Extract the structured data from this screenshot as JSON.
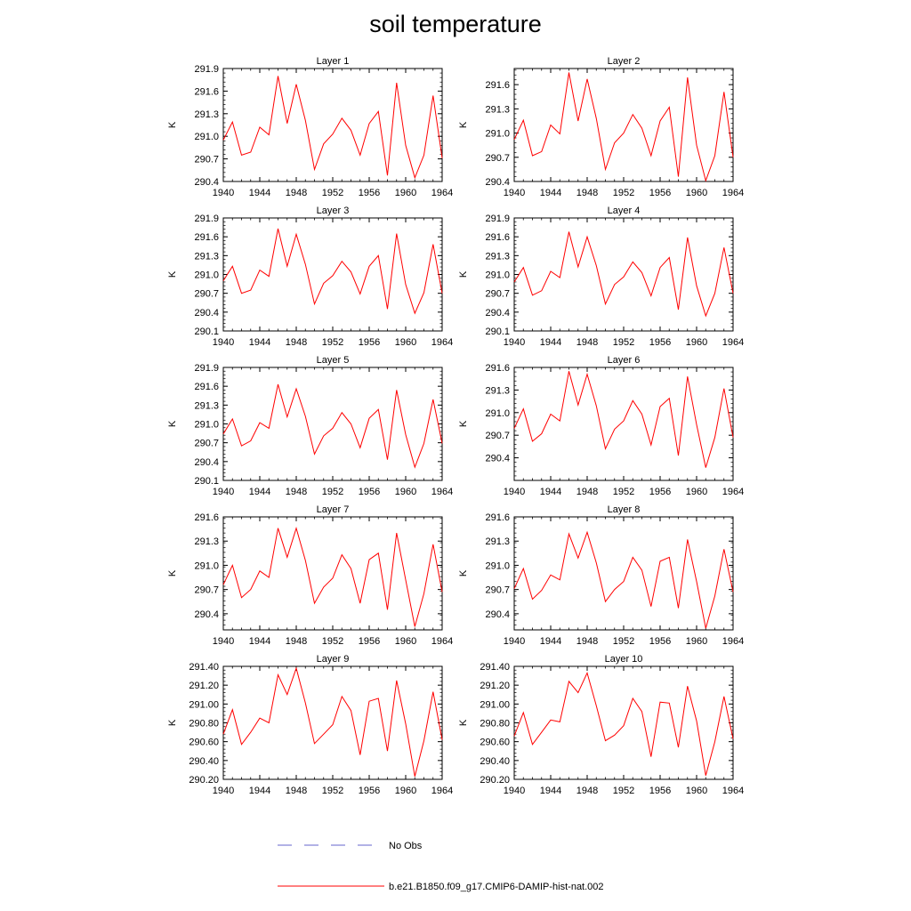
{
  "title": "soil temperature",
  "legend": [
    {
      "label": "No Obs",
      "color": "#6666cc",
      "dash": true
    },
    {
      "label": "b.e21.B1850.f09_g17.CMIP6-DAMIP-hist-nat.002",
      "color": "#ff0000",
      "dash": false
    }
  ],
  "chart_data": [
    {
      "type": "line",
      "title": "Layer 1",
      "ylabel": "K",
      "xlim": [
        1940,
        1964
      ],
      "ylim": [
        290.4,
        291.9
      ],
      "yticks": [
        290.4,
        290.7,
        291.0,
        291.3,
        291.6,
        291.9
      ],
      "ydec": 1,
      "xticks": [
        1940,
        1944,
        1948,
        1952,
        1956,
        1960,
        1964
      ],
      "x": [
        1940,
        1941,
        1942,
        1943,
        1944,
        1945,
        1946,
        1947,
        1948,
        1949,
        1950,
        1951,
        1952,
        1953,
        1954,
        1955,
        1956,
        1957,
        1958,
        1959,
        1960,
        1961,
        1962,
        1963,
        1964
      ],
      "series": [
        {
          "name": "b.e21.B1850.f09_g17.CMIP6-DAMIP-hist-nat.002",
          "values": [
            290.95,
            291.19,
            290.75,
            290.79,
            291.12,
            291.02,
            291.8,
            291.17,
            291.69,
            291.21,
            290.56,
            290.9,
            291.03,
            291.24,
            291.08,
            290.75,
            291.17,
            291.33,
            290.48,
            291.71,
            290.88,
            290.45,
            290.75,
            291.54,
            290.71
          ]
        }
      ]
    },
    {
      "type": "line",
      "title": "Layer 2",
      "ylabel": "K",
      "xlim": [
        1940,
        1964
      ],
      "ylim": [
        290.4,
        291.8
      ],
      "yticks": [
        290.4,
        290.7,
        291.0,
        291.3,
        291.6
      ],
      "ydec": 1,
      "xticks": [
        1940,
        1944,
        1948,
        1952,
        1956,
        1960,
        1964
      ],
      "x": [
        1940,
        1941,
        1942,
        1943,
        1944,
        1945,
        1946,
        1947,
        1948,
        1949,
        1950,
        1951,
        1952,
        1953,
        1954,
        1955,
        1956,
        1957,
        1958,
        1959,
        1960,
        1961,
        1962,
        1963,
        1964
      ],
      "series": [
        {
          "name": "b.e21.B1850.f09_g17.CMIP6-DAMIP-hist-nat.002",
          "values": [
            290.92,
            291.16,
            290.72,
            290.77,
            291.1,
            290.99,
            291.75,
            291.15,
            291.67,
            291.18,
            290.55,
            290.88,
            291.0,
            291.23,
            291.06,
            290.72,
            291.15,
            291.32,
            290.46,
            291.69,
            290.85,
            290.41,
            290.72,
            291.51,
            290.7
          ]
        }
      ]
    },
    {
      "type": "line",
      "title": "Layer 3",
      "ylabel": "K",
      "xlim": [
        1940,
        1964
      ],
      "ylim": [
        290.1,
        291.9
      ],
      "yticks": [
        290.1,
        290.4,
        290.7,
        291.0,
        291.3,
        291.6,
        291.9
      ],
      "ydec": 1,
      "xticks": [
        1940,
        1944,
        1948,
        1952,
        1956,
        1960,
        1964
      ],
      "x": [
        1940,
        1941,
        1942,
        1943,
        1944,
        1945,
        1946,
        1947,
        1948,
        1949,
        1950,
        1951,
        1952,
        1953,
        1954,
        1955,
        1956,
        1957,
        1958,
        1959,
        1960,
        1961,
        1962,
        1963,
        1964
      ],
      "series": [
        {
          "name": "b.e21.B1850.f09_g17.CMIP6-DAMIP-hist-nat.002",
          "values": [
            290.9,
            291.13,
            290.7,
            290.75,
            291.07,
            290.97,
            291.73,
            291.13,
            291.64,
            291.16,
            290.53,
            290.86,
            290.98,
            291.21,
            291.04,
            290.69,
            291.13,
            291.3,
            290.45,
            291.65,
            290.84,
            290.38,
            290.71,
            291.48,
            290.7
          ]
        }
      ]
    },
    {
      "type": "line",
      "title": "Layer 4",
      "ylabel": "K",
      "xlim": [
        1940,
        1964
      ],
      "ylim": [
        290.1,
        291.9
      ],
      "yticks": [
        290.1,
        290.4,
        290.7,
        291.0,
        291.3,
        291.6,
        291.9
      ],
      "ydec": 1,
      "xticks": [
        1940,
        1944,
        1948,
        1952,
        1956,
        1960,
        1964
      ],
      "x": [
        1940,
        1941,
        1942,
        1943,
        1944,
        1945,
        1946,
        1947,
        1948,
        1949,
        1950,
        1951,
        1952,
        1953,
        1954,
        1955,
        1956,
        1957,
        1958,
        1959,
        1960,
        1961,
        1962,
        1963,
        1964
      ],
      "series": [
        {
          "name": "b.e21.B1850.f09_g17.CMIP6-DAMIP-hist-nat.002",
          "values": [
            290.88,
            291.11,
            290.67,
            290.74,
            291.05,
            290.95,
            291.68,
            291.12,
            291.6,
            291.14,
            290.53,
            290.84,
            290.96,
            291.2,
            291.03,
            290.66,
            291.11,
            291.27,
            290.44,
            291.59,
            290.82,
            290.34,
            290.7,
            291.43,
            290.7
          ]
        }
      ]
    },
    {
      "type": "line",
      "title": "Layer 5",
      "ylabel": "K",
      "xlim": [
        1940,
        1964
      ],
      "ylim": [
        290.1,
        291.9
      ],
      "yticks": [
        290.1,
        290.4,
        290.7,
        291.0,
        291.3,
        291.6,
        291.9
      ],
      "ydec": 1,
      "xticks": [
        1940,
        1944,
        1948,
        1952,
        1956,
        1960,
        1964
      ],
      "x": [
        1940,
        1941,
        1942,
        1943,
        1944,
        1945,
        1946,
        1947,
        1948,
        1949,
        1950,
        1951,
        1952,
        1953,
        1954,
        1955,
        1956,
        1957,
        1958,
        1959,
        1960,
        1961,
        1962,
        1963,
        1964
      ],
      "series": [
        {
          "name": "b.e21.B1850.f09_g17.CMIP6-DAMIP-hist-nat.002",
          "values": [
            290.84,
            291.08,
            290.65,
            290.73,
            291.02,
            290.93,
            291.63,
            291.11,
            291.56,
            291.12,
            290.52,
            290.81,
            290.93,
            291.18,
            291.0,
            290.62,
            291.09,
            291.23,
            290.43,
            291.54,
            290.83,
            290.31,
            290.69,
            291.39,
            290.69
          ]
        }
      ]
    },
    {
      "type": "line",
      "title": "Layer 6",
      "ylabel": "K",
      "xlim": [
        1940,
        1964
      ],
      "ylim": [
        290.1,
        291.6
      ],
      "yticks": [
        290.4,
        290.7,
        291.0,
        291.3,
        291.6
      ],
      "ydec": 1,
      "xticks": [
        1940,
        1944,
        1948,
        1952,
        1956,
        1960,
        1964
      ],
      "x": [
        1940,
        1941,
        1942,
        1943,
        1944,
        1945,
        1946,
        1947,
        1948,
        1949,
        1950,
        1951,
        1952,
        1953,
        1954,
        1955,
        1956,
        1957,
        1958,
        1959,
        1960,
        1961,
        1962,
        1963,
        1964
      ],
      "series": [
        {
          "name": "b.e21.B1850.f09_g17.CMIP6-DAMIP-hist-nat.002",
          "values": [
            290.79,
            291.05,
            290.62,
            290.72,
            290.98,
            290.89,
            291.55,
            291.1,
            291.51,
            291.09,
            290.52,
            290.78,
            290.89,
            291.16,
            290.98,
            290.57,
            291.08,
            291.19,
            290.43,
            291.48,
            290.84,
            290.27,
            290.67,
            291.32,
            290.67
          ]
        }
      ]
    },
    {
      "type": "line",
      "title": "Layer 7",
      "ylabel": "K",
      "xlim": [
        1940,
        1964
      ],
      "ylim": [
        290.2,
        291.6
      ],
      "yticks": [
        290.4,
        290.7,
        291.0,
        291.3,
        291.6
      ],
      "ydec": 1,
      "xticks": [
        1940,
        1944,
        1948,
        1952,
        1956,
        1960,
        1964
      ],
      "x": [
        1940,
        1941,
        1942,
        1943,
        1944,
        1945,
        1946,
        1947,
        1948,
        1949,
        1950,
        1951,
        1952,
        1953,
        1954,
        1955,
        1956,
        1957,
        1958,
        1959,
        1960,
        1961,
        1962,
        1963,
        1964
      ],
      "series": [
        {
          "name": "b.e21.B1850.f09_g17.CMIP6-DAMIP-hist-nat.002",
          "values": [
            290.76,
            291.0,
            290.6,
            290.7,
            290.93,
            290.85,
            291.46,
            291.1,
            291.46,
            291.06,
            290.53,
            290.73,
            290.84,
            291.13,
            290.96,
            290.53,
            291.07,
            291.15,
            290.45,
            291.4,
            290.82,
            290.24,
            290.65,
            291.26,
            290.67
          ]
        }
      ]
    },
    {
      "type": "line",
      "title": "Layer 8",
      "ylabel": "K",
      "xlim": [
        1940,
        1964
      ],
      "ylim": [
        290.2,
        291.6
      ],
      "yticks": [
        290.4,
        290.7,
        291.0,
        291.3,
        291.6
      ],
      "ydec": 1,
      "xticks": [
        1940,
        1944,
        1948,
        1952,
        1956,
        1960,
        1964
      ],
      "x": [
        1940,
        1941,
        1942,
        1943,
        1944,
        1945,
        1946,
        1947,
        1948,
        1949,
        1950,
        1951,
        1952,
        1953,
        1954,
        1955,
        1956,
        1957,
        1958,
        1959,
        1960,
        1961,
        1962,
        1963,
        1964
      ],
      "series": [
        {
          "name": "b.e21.B1850.f09_g17.CMIP6-DAMIP-hist-nat.002",
          "values": [
            290.71,
            290.96,
            290.58,
            290.69,
            290.88,
            290.82,
            291.39,
            291.09,
            291.41,
            291.03,
            290.55,
            290.7,
            290.8,
            291.1,
            290.94,
            290.49,
            291.05,
            291.1,
            290.47,
            291.32,
            290.8,
            290.22,
            290.62,
            291.2,
            290.67
          ]
        }
      ]
    },
    {
      "type": "line",
      "title": "Layer 9",
      "ylabel": "K",
      "xlim": [
        1940,
        1964
      ],
      "ylim": [
        290.2,
        291.4
      ],
      "yticks": [
        290.2,
        290.4,
        290.6,
        290.8,
        291.0,
        291.2,
        291.4
      ],
      "ydec": 2,
      "xticks": [
        1940,
        1944,
        1948,
        1952,
        1956,
        1960,
        1964
      ],
      "x": [
        1940,
        1941,
        1942,
        1943,
        1944,
        1945,
        1946,
        1947,
        1948,
        1949,
        1950,
        1951,
        1952,
        1953,
        1954,
        1955,
        1956,
        1957,
        1958,
        1959,
        1960,
        1961,
        1962,
        1963,
        1964
      ],
      "series": [
        {
          "name": "b.e21.B1850.f09_g17.CMIP6-DAMIP-hist-nat.002",
          "values": [
            290.68,
            290.94,
            290.57,
            290.7,
            290.85,
            290.8,
            291.31,
            291.1,
            291.38,
            291.01,
            290.58,
            290.68,
            290.78,
            291.08,
            290.93,
            290.46,
            291.03,
            291.06,
            290.5,
            291.25,
            290.79,
            290.23,
            290.61,
            291.13,
            290.62
          ]
        }
      ]
    },
    {
      "type": "line",
      "title": "Layer 10",
      "ylabel": "K",
      "xlim": [
        1940,
        1964
      ],
      "ylim": [
        290.2,
        291.4
      ],
      "yticks": [
        290.2,
        290.4,
        290.6,
        290.8,
        291.0,
        291.2,
        291.4
      ],
      "ydec": 2,
      "xticks": [
        1940,
        1944,
        1948,
        1952,
        1956,
        1960,
        1964
      ],
      "x": [
        1940,
        1941,
        1942,
        1943,
        1944,
        1945,
        1946,
        1947,
        1948,
        1949,
        1950,
        1951,
        1952,
        1953,
        1954,
        1955,
        1956,
        1957,
        1958,
        1959,
        1960,
        1961,
        1962,
        1963,
        1964
      ],
      "series": [
        {
          "name": "b.e21.B1850.f09_g17.CMIP6-DAMIP-hist-nat.002",
          "values": [
            290.66,
            290.91,
            290.57,
            290.7,
            290.83,
            290.81,
            291.24,
            291.12,
            291.33,
            290.98,
            290.61,
            290.67,
            290.77,
            291.06,
            290.92,
            290.44,
            291.02,
            291.01,
            290.54,
            291.19,
            290.82,
            290.24,
            290.6,
            291.08,
            290.63
          ]
        }
      ]
    }
  ]
}
